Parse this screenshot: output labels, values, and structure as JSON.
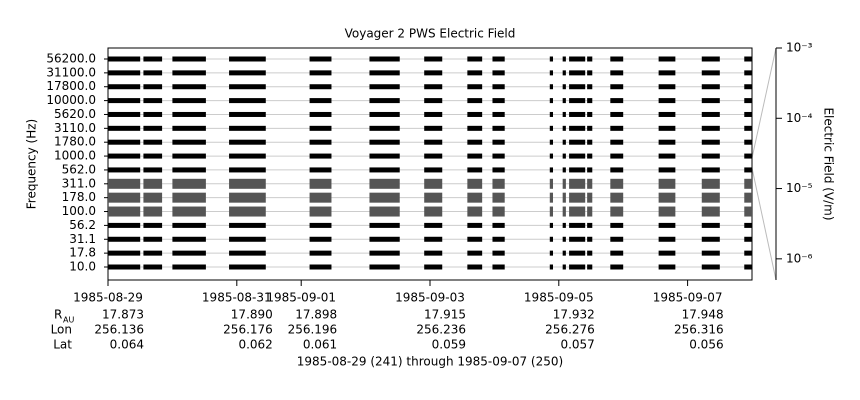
{
  "chart_data": {
    "type": "spectrogram",
    "title": "Voyager 2 PWS Electric Field",
    "y_label": "Frequency (Hz)",
    "y2_label": "Electric Field (V/m)",
    "footer": "1985-08-29 (241) through 1985-09-07 (250)",
    "categories": [
      "56200.0",
      "31100.0",
      "17800.0",
      "10000.0",
      "5620.0",
      "3110.0",
      "1780.0",
      "1000.0",
      "562.0",
      "311.0",
      "178.0",
      "100.0",
      "56.2",
      "31.1",
      "17.8",
      "10.0"
    ],
    "colors": [
      "#000000",
      "#000000",
      "#000000",
      "#000000",
      "#000000",
      "#000000",
      "#000000",
      "#000000",
      "#000000",
      "#555555",
      "#555555",
      "#555555",
      "#000000",
      "#000000",
      "#000000",
      "#000000"
    ],
    "intervals": [
      [
        241.0,
        241.5
      ],
      [
        241.55,
        241.84
      ],
      [
        242.0,
        242.52
      ],
      [
        242.88,
        243.45
      ],
      [
        244.13,
        244.47
      ],
      [
        245.06,
        245.53
      ],
      [
        245.91,
        246.19
      ],
      [
        246.58,
        246.81
      ],
      [
        246.97,
        247.16
      ],
      [
        247.86,
        247.91
      ],
      [
        248.06,
        248.11
      ],
      [
        248.16,
        248.41
      ],
      [
        248.44,
        248.52
      ],
      [
        248.8,
        249.0
      ],
      [
        249.55,
        249.81
      ],
      [
        250.22,
        250.5
      ],
      [
        250.88,
        251.0
      ]
    ],
    "xlim": [
      241,
      251
    ],
    "xticks": [
      {
        "value": 241,
        "label": "1985-08-29"
      },
      {
        "value": 243,
        "label": "1985-08-31"
      },
      {
        "value": 244,
        "label": "1985-09-01"
      },
      {
        "value": 246,
        "label": "1985-09-03"
      },
      {
        "value": 248,
        "label": "1985-09-05"
      },
      {
        "value": 250,
        "label": "1985-09-07"
      }
    ],
    "y2lim": [
      5e-07,
      0.001
    ],
    "y2_log": true,
    "y2ticks": [
      {
        "value": 0.001,
        "label": "10⁻³"
      },
      {
        "value": 0.0001,
        "label": "10⁻⁴"
      },
      {
        "value": 1e-05,
        "label": "10⁻⁵"
      },
      {
        "value": 1e-06,
        "label": "10⁻⁶"
      }
    ],
    "ephemeris": [
      {
        "label": "R",
        "sub": "AU",
        "values": [
          "17.873",
          "17.890",
          "17.898",
          "17.915",
          "17.932",
          "17.948"
        ]
      },
      {
        "label": "Lon",
        "values": [
          "256.136",
          "256.176",
          "256.196",
          "256.236",
          "256.276",
          "256.316"
        ]
      },
      {
        "label": "Lat",
        "values": [
          "0.064",
          "0.062",
          "0.061",
          "0.059",
          "0.057",
          "0.056"
        ]
      }
    ]
  }
}
